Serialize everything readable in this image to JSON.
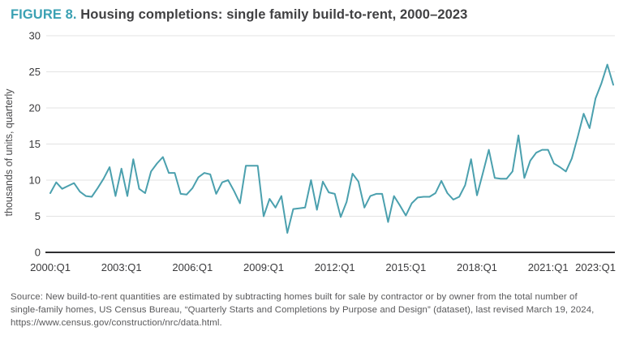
{
  "figure": {
    "label": "FIGURE 8.",
    "title": "Housing completions: single family build-to-rent, 2000–2023"
  },
  "chart_data": {
    "type": "line",
    "title": "FIGURE 8. Housing completions: single family build-to-rent, 2000–2023",
    "xlabel": "",
    "ylabel": "thousands of units, quarterly",
    "ylim": [
      0,
      30
    ],
    "grid": "horizontal",
    "legend": "none",
    "line_color": "#4ba0ae",
    "axis_color": "#2f2f31",
    "grid_color": "#e3e3e3",
    "tick_label_color": "#3a3a3c",
    "y_ticks": [
      0,
      5,
      10,
      15,
      20,
      25,
      30
    ],
    "x_ticks": [
      {
        "label": "2000:Q1",
        "index": 0
      },
      {
        "label": "2003:Q1",
        "index": 12
      },
      {
        "label": "2006:Q1",
        "index": 24
      },
      {
        "label": "2009:Q1",
        "index": 36
      },
      {
        "label": "2012:Q1",
        "index": 48
      },
      {
        "label": "2015:Q1",
        "index": 60
      },
      {
        "label": "2018:Q1",
        "index": 72
      },
      {
        "label": "2021:Q1",
        "index": 84
      },
      {
        "label": "2023:Q1",
        "index": 92
      }
    ],
    "x": [
      "2000:Q1",
      "2000:Q2",
      "2000:Q3",
      "2000:Q4",
      "2001:Q1",
      "2001:Q2",
      "2001:Q3",
      "2001:Q4",
      "2002:Q1",
      "2002:Q2",
      "2002:Q3",
      "2002:Q4",
      "2003:Q1",
      "2003:Q2",
      "2003:Q3",
      "2003:Q4",
      "2004:Q1",
      "2004:Q2",
      "2004:Q3",
      "2004:Q4",
      "2005:Q1",
      "2005:Q2",
      "2005:Q3",
      "2005:Q4",
      "2006:Q1",
      "2006:Q2",
      "2006:Q3",
      "2006:Q4",
      "2007:Q1",
      "2007:Q2",
      "2007:Q3",
      "2007:Q4",
      "2008:Q1",
      "2008:Q2",
      "2008:Q3",
      "2008:Q4",
      "2009:Q1",
      "2009:Q2",
      "2009:Q3",
      "2009:Q4",
      "2010:Q1",
      "2010:Q2",
      "2010:Q3",
      "2010:Q4",
      "2011:Q1",
      "2011:Q2",
      "2011:Q3",
      "2011:Q4",
      "2012:Q1",
      "2012:Q2",
      "2012:Q3",
      "2012:Q4",
      "2013:Q1",
      "2013:Q2",
      "2013:Q3",
      "2013:Q4",
      "2014:Q1",
      "2014:Q2",
      "2014:Q3",
      "2014:Q4",
      "2015:Q1",
      "2015:Q2",
      "2015:Q3",
      "2015:Q4",
      "2016:Q1",
      "2016:Q2",
      "2016:Q3",
      "2016:Q4",
      "2017:Q1",
      "2017:Q2",
      "2017:Q3",
      "2017:Q4",
      "2018:Q1",
      "2018:Q2",
      "2018:Q3",
      "2018:Q4",
      "2019:Q1",
      "2019:Q2",
      "2019:Q3",
      "2019:Q4",
      "2020:Q1",
      "2020:Q2",
      "2020:Q3",
      "2020:Q4",
      "2021:Q1",
      "2021:Q2",
      "2021:Q3",
      "2021:Q4",
      "2022:Q1",
      "2022:Q2",
      "2022:Q3",
      "2022:Q4",
      "2023:Q1",
      "2023:Q2",
      "2023:Q3",
      "2023:Q4"
    ],
    "series": [
      {
        "name": "Single family build-to-rent completions",
        "values": [
          8.2,
          9.7,
          8.8,
          9.2,
          9.6,
          8.4,
          7.8,
          7.7,
          8.9,
          10.2,
          11.8,
          7.8,
          11.6,
          7.8,
          12.9,
          8.8,
          8.2,
          11.2,
          12.3,
          13.2,
          11.0,
          11.0,
          8.1,
          8.0,
          8.9,
          10.4,
          11.0,
          10.8,
          8.1,
          9.7,
          10.0,
          8.5,
          6.8,
          12.0,
          12.0,
          12.0,
          5.0,
          7.4,
          6.2,
          7.8,
          2.7,
          6.0,
          6.1,
          6.2,
          10.0,
          5.9,
          9.8,
          8.3,
          8.1,
          4.9,
          7.0,
          10.9,
          9.8,
          6.2,
          7.8,
          8.1,
          8.1,
          4.2,
          7.8,
          6.5,
          5.1,
          6.8,
          7.6,
          7.7,
          7.7,
          8.2,
          9.9,
          8.2,
          7.3,
          7.7,
          9.3,
          12.9,
          7.9,
          11.0,
          14.2,
          10.3,
          10.2,
          10.2,
          11.2,
          16.2,
          10.3,
          12.7,
          13.8,
          14.2,
          14.2,
          12.3,
          11.8,
          11.2,
          13.0,
          16.0,
          19.2,
          17.2,
          21.3,
          23.4,
          26.0,
          23.2
        ]
      }
    ]
  },
  "source": {
    "lines": [
      "Source: New build-to-rent quantities are estimated by subtracting homes built for sale by contractor or by owner from the total number of",
      "single-family homes, US Census Bureau, “Quarterly Starts and Completions by Purpose and Design” (dataset), last revised March 19, 2024,",
      "https://www.census.gov/construction/nrc/data.html."
    ]
  }
}
